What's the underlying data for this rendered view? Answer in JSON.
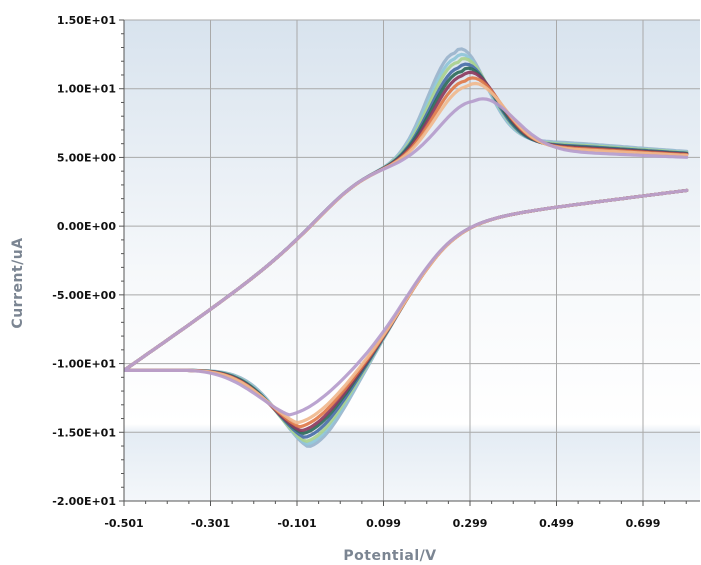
{
  "chart_data": {
    "type": "line",
    "title": "",
    "xlabel": "Potential/V",
    "ylabel": "Current/uA",
    "xlim": [
      -0.501,
      0.8
    ],
    "ylim": [
      -20,
      15
    ],
    "x_ticks": [
      -0.501,
      -0.301,
      -0.101,
      0.099,
      0.299,
      0.499,
      0.699
    ],
    "x_tick_labels": [
      "-0.501",
      "-0.301",
      "-0.101",
      "0.099",
      "0.299",
      "0.499",
      "0.699"
    ],
    "y_ticks": [
      15,
      10,
      5,
      0,
      -5,
      -10,
      -15,
      -20
    ],
    "y_tick_labels": [
      "1.50E+01",
      "1.00E+01",
      "5.00E+00",
      "0.00E+00",
      "-5.00E+00",
      "-1.00E+01",
      "-1.50E+01",
      "-2.00E+01"
    ],
    "grid": true,
    "legend": "none",
    "background": "light blue gradient",
    "series": [
      {
        "color": "#9ab4cc",
        "peak_anodic": [
          0.265,
          12.7
        ],
        "peak_cathodic": [
          -0.075,
          -16.2
        ]
      },
      {
        "color": "#8fc5d8",
        "peak_anodic": [
          0.268,
          12.3
        ],
        "peak_cathodic": [
          -0.078,
          -16.0
        ]
      },
      {
        "color": "#a9d18e",
        "peak_anodic": [
          0.272,
          12.0
        ],
        "peak_cathodic": [
          -0.081,
          -15.8
        ]
      },
      {
        "color": "#4a6fa8",
        "peak_anodic": [
          0.276,
          11.6
        ],
        "peak_cathodic": [
          -0.084,
          -15.5
        ]
      },
      {
        "color": "#2e6b5a",
        "peak_anodic": [
          0.28,
          11.3
        ],
        "peak_cathodic": [
          -0.088,
          -15.2
        ]
      },
      {
        "color": "#8b3a5e",
        "peak_anodic": [
          0.285,
          11.0
        ],
        "peak_cathodic": [
          -0.092,
          -15.0
        ]
      },
      {
        "color": "#e07a4a",
        "peak_anodic": [
          0.29,
          10.6
        ],
        "peak_cathodic": [
          -0.096,
          -14.7
        ]
      },
      {
        "color": "#f0b98e",
        "peak_anodic": [
          0.295,
          10.2
        ],
        "peak_cathodic": [
          -0.101,
          -14.4
        ]
      },
      {
        "color": "#b59ccc",
        "peak_anodic": [
          0.31,
          9.1
        ],
        "peak_cathodic": [
          -0.12,
          -13.8
        ]
      }
    ]
  }
}
